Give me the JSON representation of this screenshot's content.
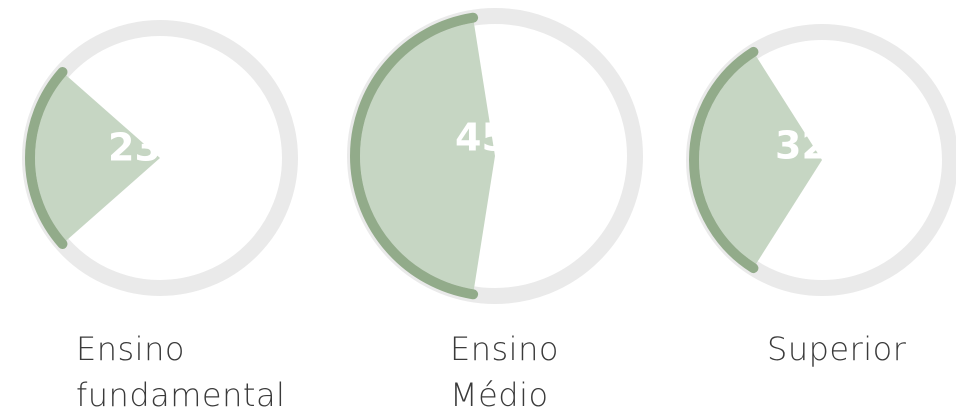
{
  "chart_data": {
    "type": "gauge",
    "categories": [
      "Ensino fundamental",
      "Ensino Médio",
      "Superior"
    ],
    "values": [
      23,
      45,
      32
    ],
    "value_labels": [
      "23%",
      "45%",
      "32%"
    ],
    "color": "#92ab8a",
    "wedge_color": "#c6d6c3",
    "track_color": "#eaeaea"
  }
}
